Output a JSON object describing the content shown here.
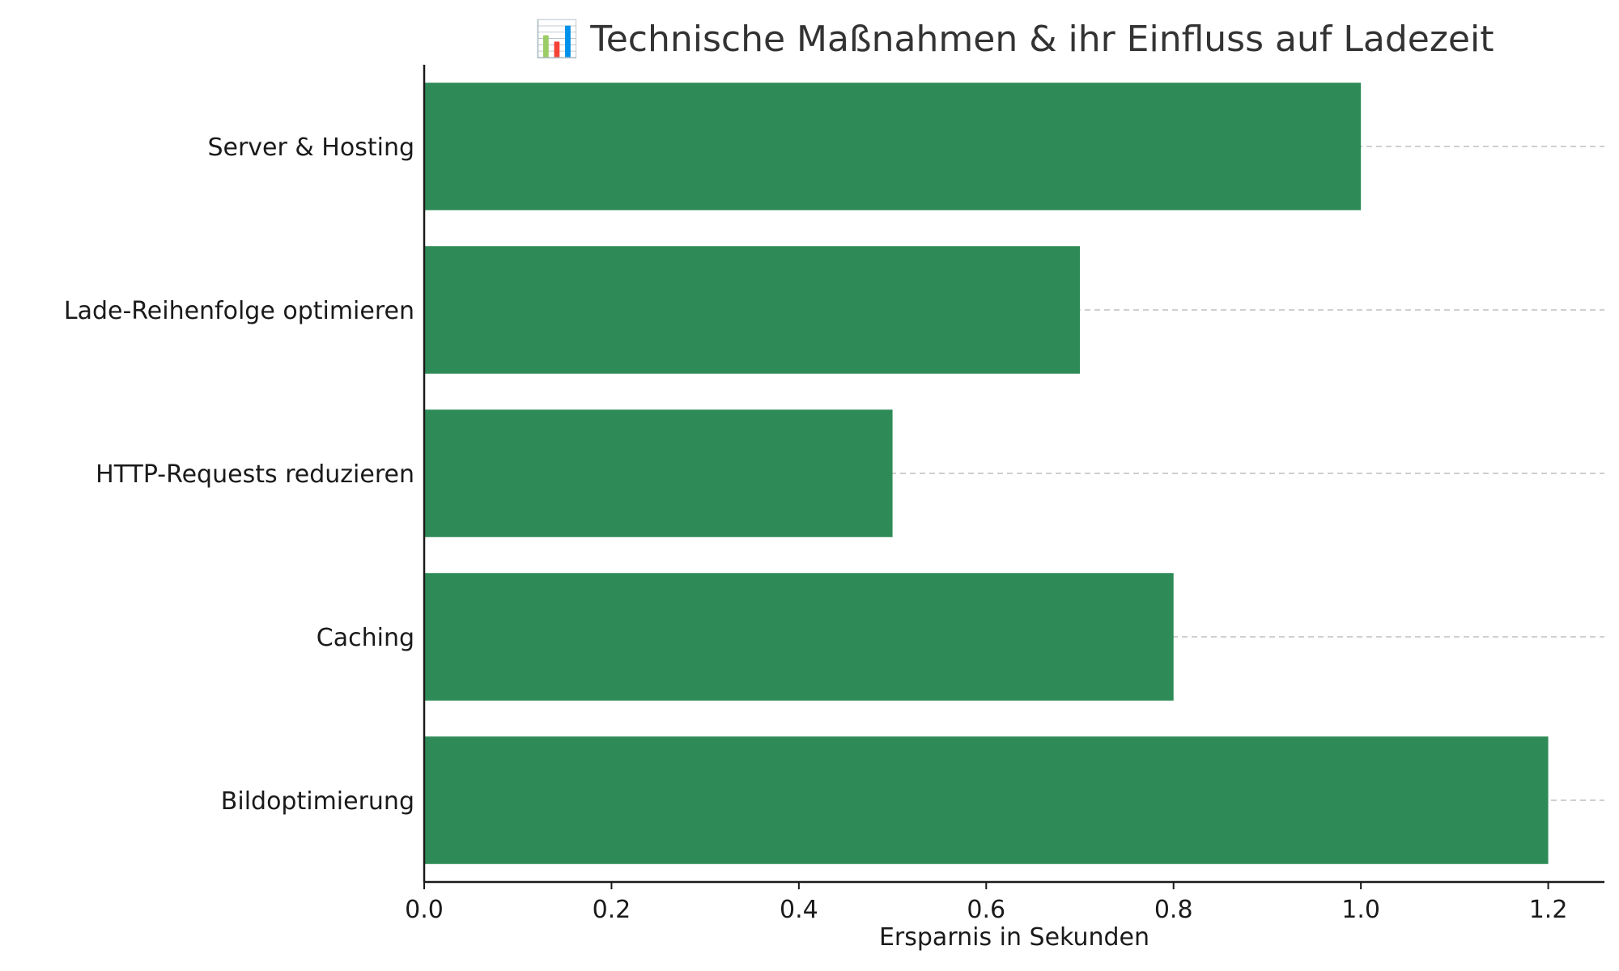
{
  "chart_data": {
    "type": "bar",
    "orientation": "horizontal",
    "title": "📊 Technische Maßnahmen & ihr Einfluss auf Ladezeit",
    "title_icon": "bar-chart-icon",
    "xlabel": "Ersparnis in Sekunden",
    "ylabel": "",
    "categories": [
      "Bildoptimierung",
      "Caching",
      "HTTP-Requests reduzieren",
      "Lade-Reihenfolge optimieren",
      "Server & Hosting"
    ],
    "values": [
      1.2,
      0.8,
      0.5,
      0.7,
      1.0
    ],
    "xlim": [
      0,
      1.26
    ],
    "xticks": [
      0.0,
      0.2,
      0.4,
      0.6,
      0.8,
      1.0,
      1.2
    ],
    "xtick_labels": [
      "0.0",
      "0.2",
      "0.4",
      "0.6",
      "0.8",
      "1.0",
      "1.2"
    ],
    "grid": "horizontal dashed at category centers",
    "bar_color": "#2e8b57",
    "legend": "none"
  }
}
